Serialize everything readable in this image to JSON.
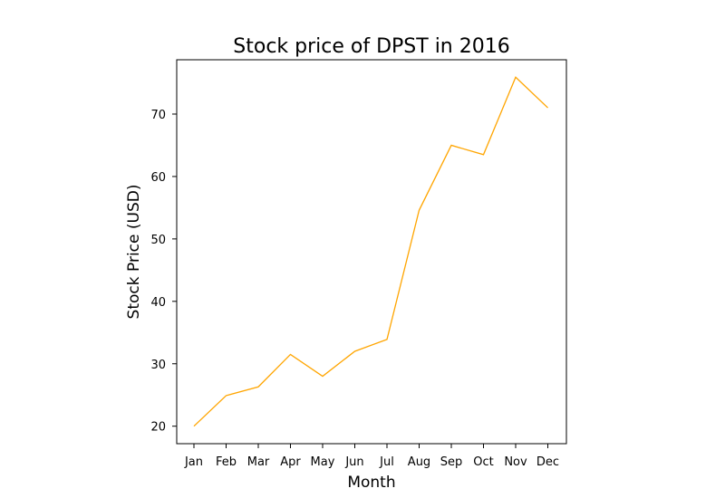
{
  "chart_data": {
    "type": "line",
    "title": "Stock price of DPST in 2016",
    "xlabel": "Month",
    "ylabel": "Stock Price (USD)",
    "categories": [
      "Jan",
      "Feb",
      "Mar",
      "Apr",
      "May",
      "Jun",
      "Jul",
      "Aug",
      "Sep",
      "Oct",
      "Nov",
      "Dec"
    ],
    "series": [
      {
        "values": [
          20.0,
          24.9,
          26.3,
          31.5,
          28.0,
          32.0,
          33.9,
          54.6,
          65.0,
          63.5,
          75.9,
          71.0
        ],
        "color": "#ffa500"
      }
    ],
    "yticks": [
      20,
      30,
      40,
      50,
      60,
      70
    ],
    "ylim": [
      17.2,
      78.7
    ],
    "grid": false,
    "legend": "none"
  }
}
